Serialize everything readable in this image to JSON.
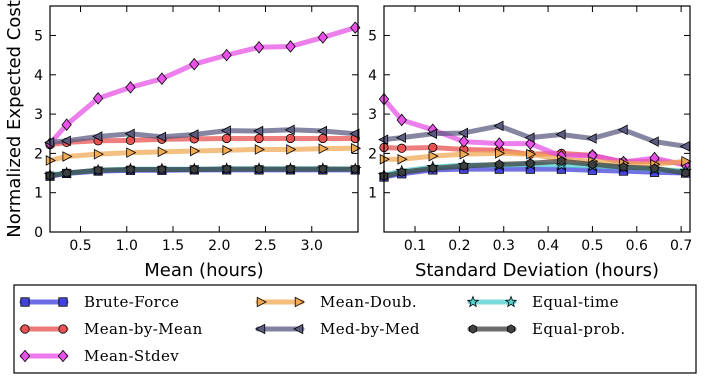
{
  "chart_data": [
    {
      "type": "line",
      "xlabel": "Mean (hours)",
      "ylabel": "Normalized Expected Cost",
      "xlim": [
        0.17,
        3.5
      ],
      "ylim": [
        0,
        5.75
      ],
      "xticks": [
        0.5,
        1.0,
        1.5,
        2.0,
        2.5,
        3.0
      ],
      "xtick_labels": [
        "0.5",
        "1.0",
        "1.5",
        "2.0",
        "2.5",
        "3.0"
      ],
      "yticks": [
        0,
        1,
        2,
        3,
        4,
        5
      ],
      "ytick_labels": [
        "0",
        "1",
        "2",
        "3",
        "4",
        "5"
      ],
      "grid": false,
      "x": [
        0.17,
        0.35,
        0.69,
        1.04,
        1.38,
        1.73,
        2.08,
        2.43,
        2.77,
        3.12,
        3.47
      ],
      "series": [
        {
          "name": "Brute-Force",
          "color": "#3b3bdb",
          "marker": "square",
          "values": [
            1.42,
            1.49,
            1.55,
            1.57,
            1.57,
            1.58,
            1.58,
            1.58,
            1.58,
            1.58,
            1.58
          ]
        },
        {
          "name": "Mean-by-Mean",
          "color": "#e84c4c",
          "marker": "circle",
          "values": [
            2.22,
            2.28,
            2.32,
            2.33,
            2.36,
            2.37,
            2.38,
            2.38,
            2.38,
            2.38,
            2.38
          ]
        },
        {
          "name": "Mean-Stdev",
          "color": "#e64de6",
          "marker": "diamond",
          "values": [
            2.25,
            2.73,
            3.4,
            3.68,
            3.9,
            4.27,
            4.5,
            4.7,
            4.72,
            4.95,
            5.2
          ]
        },
        {
          "name": "Mean-Doub.",
          "color": "#f0a850",
          "marker": "triangle-right",
          "values": [
            1.82,
            1.92,
            1.98,
            2.02,
            2.04,
            2.06,
            2.08,
            2.1,
            2.1,
            2.12,
            2.13
          ]
        },
        {
          "name": "Med-by-Med",
          "color": "#585880",
          "marker": "triangle-left",
          "values": [
            2.28,
            2.32,
            2.43,
            2.5,
            2.42,
            2.48,
            2.58,
            2.57,
            2.6,
            2.57,
            2.5
          ]
        },
        {
          "name": "Equal-time",
          "color": "#4ecfcf",
          "marker": "star",
          "values": [
            1.45,
            1.5,
            1.57,
            1.6,
            1.6,
            1.6,
            1.61,
            1.61,
            1.61,
            1.61,
            1.6
          ]
        },
        {
          "name": "Equal-prob.",
          "color": "#3c3c3c",
          "marker": "hexagon",
          "values": [
            1.43,
            1.5,
            1.57,
            1.59,
            1.59,
            1.59,
            1.6,
            1.6,
            1.6,
            1.6,
            1.6
          ]
        }
      ]
    },
    {
      "type": "line",
      "xlabel": "Standard Deviation (hours)",
      "ylabel": "",
      "xlim": [
        0.03,
        0.72
      ],
      "ylim": [
        0,
        5.75
      ],
      "xticks": [
        0.1,
        0.2,
        0.3,
        0.4,
        0.5,
        0.6,
        0.7
      ],
      "xtick_labels": [
        "0.1",
        "0.2",
        "0.3",
        "0.4",
        "0.5",
        "0.6",
        "0.7"
      ],
      "yticks": [
        1,
        2,
        3,
        4,
        5
      ],
      "ytick_labels": [
        "1",
        "2",
        "3",
        "4",
        "5"
      ],
      "grid": false,
      "x": [
        0.03,
        0.07,
        0.14,
        0.21,
        0.29,
        0.36,
        0.43,
        0.5,
        0.57,
        0.64,
        0.71
      ],
      "series": [
        {
          "name": "Brute-Force",
          "color": "#3b3bdb",
          "marker": "square",
          "values": [
            1.4,
            1.48,
            1.58,
            1.6,
            1.6,
            1.6,
            1.6,
            1.57,
            1.55,
            1.52,
            1.5
          ]
        },
        {
          "name": "Mean-by-Mean",
          "color": "#e84c4c",
          "marker": "circle",
          "values": [
            2.15,
            2.13,
            2.15,
            2.1,
            2.08,
            1.98,
            2.0,
            1.95,
            1.78,
            1.8,
            1.75
          ]
        },
        {
          "name": "Mean-Stdev",
          "color": "#e64de6",
          "marker": "diamond",
          "values": [
            3.38,
            2.85,
            2.6,
            2.3,
            2.25,
            2.25,
            1.93,
            1.95,
            1.78,
            1.88,
            1.7
          ]
        },
        {
          "name": "Mean-Doub.",
          "color": "#f0a850",
          "marker": "triangle-right",
          "values": [
            1.85,
            1.85,
            1.93,
            1.98,
            2.0,
            1.98,
            1.85,
            1.8,
            1.75,
            1.72,
            1.8
          ]
        },
        {
          "name": "Med-by-Med",
          "color": "#585880",
          "marker": "triangle-left",
          "values": [
            2.35,
            2.4,
            2.5,
            2.52,
            2.7,
            2.4,
            2.48,
            2.38,
            2.6,
            2.3,
            2.18
          ]
        },
        {
          "name": "Equal-time",
          "color": "#4ecfcf",
          "marker": "star",
          "values": [
            1.45,
            1.55,
            1.65,
            1.7,
            1.7,
            1.72,
            1.7,
            1.68,
            1.65,
            1.6,
            1.55
          ]
        },
        {
          "name": "Equal-prob.",
          "color": "#3c3c3c",
          "marker": "hexagon",
          "values": [
            1.42,
            1.52,
            1.62,
            1.68,
            1.72,
            1.75,
            1.8,
            1.72,
            1.65,
            1.62,
            1.5
          ]
        }
      ]
    }
  ],
  "legend": {
    "placement": "bottom",
    "items": [
      {
        "label": "Brute-Force",
        "color": "#3b3bdb",
        "marker": "square"
      },
      {
        "label": "Mean-Doub.",
        "color": "#f0a850",
        "marker": "triangle-right"
      },
      {
        "label": "Equal-time",
        "color": "#4ecfcf",
        "marker": "star"
      },
      {
        "label": "Mean-by-Mean",
        "color": "#e84c4c",
        "marker": "circle"
      },
      {
        "label": "Med-by-Med",
        "color": "#585880",
        "marker": "triangle-left"
      },
      {
        "label": "Equal-prob.",
        "color": "#3c3c3c",
        "marker": "hexagon"
      },
      {
        "label": "Mean-Stdev",
        "color": "#e64de6",
        "marker": "diamond"
      }
    ]
  }
}
